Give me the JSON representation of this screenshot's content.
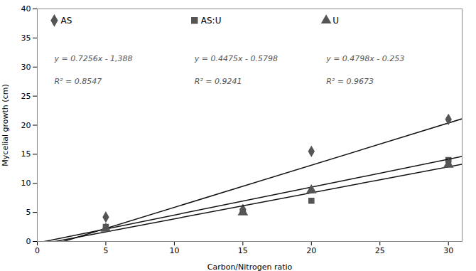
{
  "chart_data": {
    "type": "scatter",
    "xlabel": "Carbon/Nitrogen ratio",
    "ylabel": "Mycelial growth (cm)",
    "xlim": [
      0,
      31
    ],
    "ylim": [
      0,
      40
    ],
    "xticks": [
      0,
      5,
      10,
      15,
      20,
      25,
      30
    ],
    "yticks": [
      0,
      5,
      10,
      15,
      20,
      25,
      30,
      35,
      40
    ],
    "legend": "upper left",
    "x": [
      5,
      15,
      20,
      30
    ],
    "series": [
      {
        "name": "AS",
        "color": "#555555",
        "marker": "diamond",
        "values": [
          4.2,
          5.5,
          15.5,
          21.0
        ],
        "errors": [
          0.25,
          0.3,
          0.4,
          0.4
        ],
        "trend": {
          "type": "line",
          "color": "#111111",
          "slope": 0.7256,
          "intercept": -1.388
        },
        "annotations": [
          "y = 0.7256x - 1,388",
          "R² = 0.8547"
        ]
      },
      {
        "name": "AS:U",
        "color": "#555555",
        "marker": "square",
        "values": [
          2.5,
          5.2,
          7.0,
          14.0
        ],
        "errors": [
          0.2,
          0.25,
          0.25,
          0.35
        ],
        "trend": {
          "type": "line",
          "color": "#111111",
          "slope": 0.4475,
          "intercept": -0.5798
        },
        "annotations": [
          "y = 0.4475x - 0.5798",
          "R² = 0.9241"
        ]
      },
      {
        "name": "U",
        "color": "#555555",
        "marker": "triangle",
        "values": [
          2.2,
          5.0,
          8.8,
          13.2
        ],
        "errors": [
          0.2,
          0.2,
          0.3,
          0.35
        ],
        "trend": {
          "type": "line",
          "color": "#111111",
          "slope": 0.4798,
          "intercept": -0.253
        },
        "annotations": [
          "y = 0.4798x - 0.253",
          "R² = 0.9673"
        ]
      }
    ]
  }
}
